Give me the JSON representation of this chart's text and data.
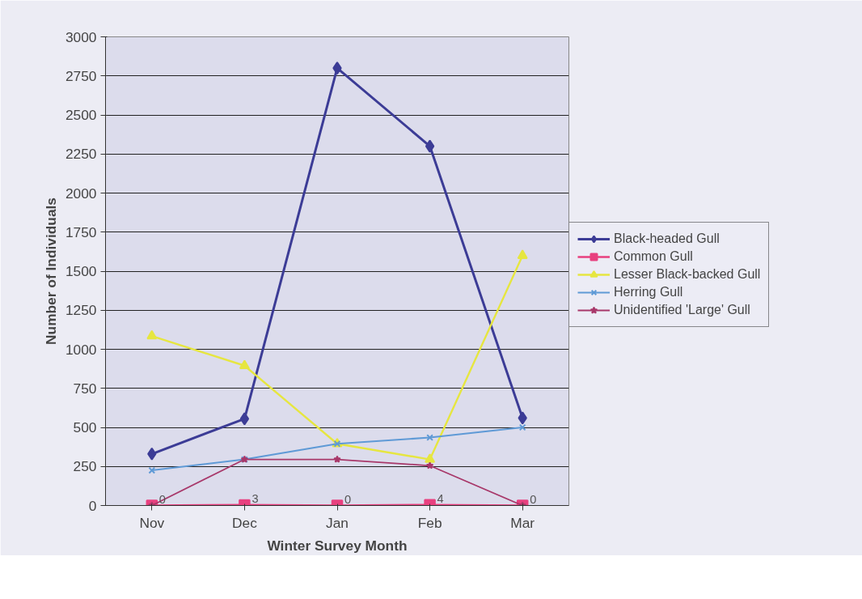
{
  "chart_data": {
    "type": "line",
    "xlabel": "Winter Survey Month",
    "ylabel": "Number of Individuals",
    "categories": [
      "Nov",
      "Dec",
      "Jan",
      "Feb",
      "Mar"
    ],
    "ylim": [
      0,
      3000
    ],
    "yticks": [
      0,
      250,
      500,
      750,
      1000,
      1250,
      1500,
      1750,
      2000,
      2250,
      2500,
      2750,
      3000
    ],
    "grid": "y",
    "legend": "right",
    "series": [
      {
        "name": "Black-headed Gull",
        "color": "#3c3c96",
        "marker": "diamond",
        "values": [
          330,
          555,
          2800,
          2300,
          560
        ]
      },
      {
        "name": "Common Gull",
        "color": "#e8407f",
        "marker": "square",
        "values": [
          0,
          3,
          0,
          4,
          0
        ],
        "value_labels": [
          "0",
          "3",
          "0",
          "4",
          "0"
        ]
      },
      {
        "name": "Lesser Black-backed Gull",
        "color": "#e6e640",
        "marker": "triangle",
        "values": [
          1085,
          895,
          395,
          295,
          1600
        ]
      },
      {
        "name": "Herring Gull",
        "color": "#5f9ad6",
        "marker": "cross",
        "values": [
          225,
          295,
          395,
          435,
          500
        ]
      },
      {
        "name": "Unidentified 'Large' Gull",
        "color": "#a8386a",
        "marker": "star",
        "values": [
          0,
          295,
          295,
          255,
          0
        ]
      }
    ]
  }
}
